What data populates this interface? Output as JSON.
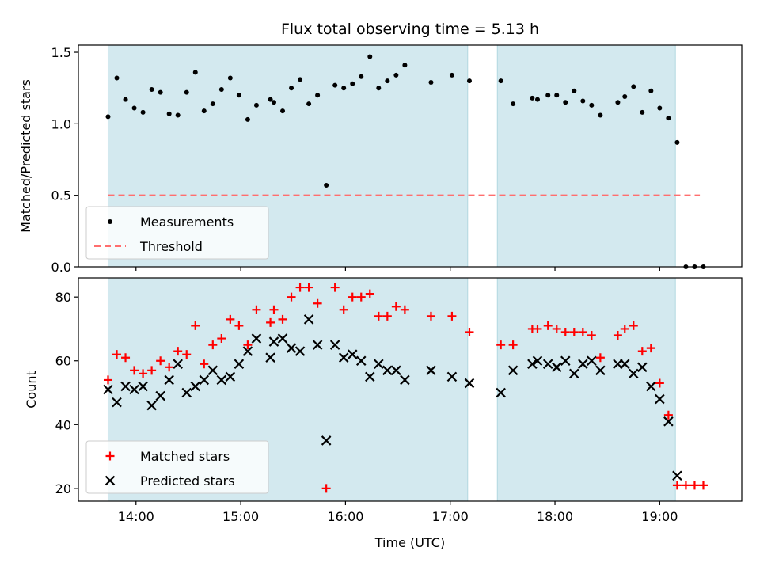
{
  "chart_data": [
    {
      "type": "scatter",
      "title": "Flux total observing time = 5.13 h",
      "xlabel": "",
      "ylabel": "Matched/Predicted stars",
      "xlim": [
        "13:27",
        "19:47"
      ],
      "ylim": [
        0,
        1.55
      ],
      "yticks": [
        0.0,
        0.5,
        1.0,
        1.5
      ],
      "ytick_labels": [
        "0.0",
        "0.5",
        "1.0",
        "1.5"
      ],
      "xticks": [
        "14:00",
        "15:00",
        "16:00",
        "17:00",
        "18:00",
        "19:00"
      ],
      "xtick_labels_shown": false,
      "shaded_intervals": [
        [
          "13:44",
          "17:10"
        ],
        [
          "17:27",
          "19:09"
        ]
      ],
      "shade_color": "#d3e9ef",
      "legend": {
        "placement": "lower-left",
        "entries": [
          "Measurements",
          "Threshold"
        ]
      },
      "series": [
        {
          "name": "Measurements",
          "marker": "dot",
          "color": "#000000",
          "points": [
            [
              "13:44",
              1.05
            ],
            [
              "13:49",
              1.32
            ],
            [
              "13:54",
              1.17
            ],
            [
              "13:59",
              1.11
            ],
            [
              "14:04",
              1.08
            ],
            [
              "14:09",
              1.24
            ],
            [
              "14:14",
              1.22
            ],
            [
              "14:19",
              1.07
            ],
            [
              "14:24",
              1.06
            ],
            [
              "14:29",
              1.22
            ],
            [
              "14:34",
              1.36
            ],
            [
              "14:39",
              1.09
            ],
            [
              "14:44",
              1.14
            ],
            [
              "14:49",
              1.24
            ],
            [
              "14:54",
              1.32
            ],
            [
              "14:59",
              1.2
            ],
            [
              "15:04",
              1.03
            ],
            [
              "15:09",
              1.13
            ],
            [
              "15:17",
              1.17
            ],
            [
              "15:19",
              1.15
            ],
            [
              "15:24",
              1.09
            ],
            [
              "15:29",
              1.25
            ],
            [
              "15:34",
              1.31
            ],
            [
              "15:39",
              1.14
            ],
            [
              "15:44",
              1.2
            ],
            [
              "15:49",
              0.57
            ],
            [
              "15:54",
              1.27
            ],
            [
              "15:59",
              1.25
            ],
            [
              "16:04",
              1.28
            ],
            [
              "16:09",
              1.33
            ],
            [
              "16:14",
              1.47
            ],
            [
              "16:19",
              1.25
            ],
            [
              "16:24",
              1.3
            ],
            [
              "16:29",
              1.34
            ],
            [
              "16:34",
              1.41
            ],
            [
              "16:49",
              1.29
            ],
            [
              "17:01",
              1.34
            ],
            [
              "17:11",
              1.3
            ],
            [
              "17:29",
              1.3
            ],
            [
              "17:36",
              1.14
            ],
            [
              "17:47",
              1.18
            ],
            [
              "17:50",
              1.17
            ],
            [
              "17:56",
              1.2
            ],
            [
              "18:01",
              1.2
            ],
            [
              "18:06",
              1.15
            ],
            [
              "18:11",
              1.23
            ],
            [
              "18:16",
              1.16
            ],
            [
              "18:21",
              1.13
            ],
            [
              "18:26",
              1.06
            ],
            [
              "18:36",
              1.15
            ],
            [
              "18:40",
              1.19
            ],
            [
              "18:45",
              1.26
            ],
            [
              "18:50",
              1.08
            ],
            [
              "18:55",
              1.23
            ],
            [
              "19:00",
              1.11
            ],
            [
              "19:05",
              1.04
            ],
            [
              "19:10",
              0.87
            ],
            [
              "19:15",
              0.0
            ],
            [
              "19:20",
              0.0
            ],
            [
              "19:25",
              0.0
            ]
          ]
        },
        {
          "name": "Threshold",
          "marker": "dashed-line",
          "color": "#ff6e6e",
          "points": [
            [
              "13:44",
              0.5
            ],
            [
              "19:23",
              0.5
            ]
          ]
        }
      ]
    },
    {
      "type": "scatter",
      "title": "",
      "xlabel": "Time (UTC)",
      "ylabel": "Count",
      "xlim": [
        "13:27",
        "19:47"
      ],
      "ylim": [
        16,
        86
      ],
      "yticks": [
        20,
        40,
        60,
        80
      ],
      "ytick_labels": [
        "20",
        "40",
        "60",
        "80"
      ],
      "xticks": [
        "14:00",
        "15:00",
        "16:00",
        "17:00",
        "18:00",
        "19:00"
      ],
      "xtick_labels": [
        "14:00",
        "15:00",
        "16:00",
        "17:00",
        "18:00",
        "19:00"
      ],
      "shaded_intervals": [
        [
          "13:44",
          "17:10"
        ],
        [
          "17:27",
          "19:09"
        ]
      ],
      "shade_color": "#d3e9ef",
      "legend": {
        "placement": "lower-left",
        "entries": [
          "Matched stars",
          "Predicted stars"
        ]
      },
      "series": [
        {
          "name": "Matched stars",
          "marker": "plus",
          "color": "#ff0000",
          "points": [
            [
              "13:44",
              54
            ],
            [
              "13:49",
              62
            ],
            [
              "13:54",
              61
            ],
            [
              "13:59",
              57
            ],
            [
              "14:04",
              56
            ],
            [
              "14:09",
              57
            ],
            [
              "14:14",
              60
            ],
            [
              "14:19",
              58
            ],
            [
              "14:24",
              63
            ],
            [
              "14:29",
              62
            ],
            [
              "14:34",
              71
            ],
            [
              "14:39",
              59
            ],
            [
              "14:44",
              65
            ],
            [
              "14:49",
              67
            ],
            [
              "14:54",
              73
            ],
            [
              "14:59",
              71
            ],
            [
              "15:04",
              65
            ],
            [
              "15:09",
              76
            ],
            [
              "15:17",
              72
            ],
            [
              "15:19",
              76
            ],
            [
              "15:24",
              73
            ],
            [
              "15:29",
              80
            ],
            [
              "15:34",
              83
            ],
            [
              "15:39",
              83
            ],
            [
              "15:44",
              78
            ],
            [
              "15:49",
              20
            ],
            [
              "15:54",
              83
            ],
            [
              "15:59",
              76
            ],
            [
              "16:04",
              80
            ],
            [
              "16:09",
              80
            ],
            [
              "16:14",
              81
            ],
            [
              "16:19",
              74
            ],
            [
              "16:24",
              74
            ],
            [
              "16:29",
              77
            ],
            [
              "16:34",
              76
            ],
            [
              "16:49",
              74
            ],
            [
              "17:01",
              74
            ],
            [
              "17:11",
              69
            ],
            [
              "17:29",
              65
            ],
            [
              "17:36",
              65
            ],
            [
              "17:47",
              70
            ],
            [
              "17:50",
              70
            ],
            [
              "17:56",
              71
            ],
            [
              "18:01",
              70
            ],
            [
              "18:06",
              69
            ],
            [
              "18:11",
              69
            ],
            [
              "18:16",
              69
            ],
            [
              "18:21",
              68
            ],
            [
              "18:26",
              61
            ],
            [
              "18:36",
              68
            ],
            [
              "18:40",
              70
            ],
            [
              "18:45",
              71
            ],
            [
              "18:50",
              63
            ],
            [
              "18:55",
              64
            ],
            [
              "19:00",
              53
            ],
            [
              "19:05",
              43
            ],
            [
              "19:10",
              21
            ],
            [
              "19:15",
              21
            ],
            [
              "19:20",
              21
            ],
            [
              "19:25",
              21
            ]
          ]
        },
        {
          "name": "Predicted stars",
          "marker": "x",
          "color": "#000000",
          "points": [
            [
              "13:44",
              51
            ],
            [
              "13:49",
              47
            ],
            [
              "13:54",
              52
            ],
            [
              "13:59",
              51
            ],
            [
              "14:04",
              52
            ],
            [
              "14:09",
              46
            ],
            [
              "14:14",
              49
            ],
            [
              "14:19",
              54
            ],
            [
              "14:24",
              59
            ],
            [
              "14:29",
              50
            ],
            [
              "14:34",
              52
            ],
            [
              "14:39",
              54
            ],
            [
              "14:44",
              57
            ],
            [
              "14:49",
              54
            ],
            [
              "14:54",
              55
            ],
            [
              "14:59",
              59
            ],
            [
              "15:04",
              63
            ],
            [
              "15:09",
              67
            ],
            [
              "15:17",
              61
            ],
            [
              "15:19",
              66
            ],
            [
              "15:24",
              67
            ],
            [
              "15:29",
              64
            ],
            [
              "15:34",
              63
            ],
            [
              "15:39",
              73
            ],
            [
              "15:44",
              65
            ],
            [
              "15:49",
              35
            ],
            [
              "15:54",
              65
            ],
            [
              "15:59",
              61
            ],
            [
              "16:04",
              62
            ],
            [
              "16:09",
              60
            ],
            [
              "16:14",
              55
            ],
            [
              "16:19",
              59
            ],
            [
              "16:24",
              57
            ],
            [
              "16:29",
              57
            ],
            [
              "16:34",
              54
            ],
            [
              "16:49",
              57
            ],
            [
              "17:01",
              55
            ],
            [
              "17:11",
              53
            ],
            [
              "17:29",
              50
            ],
            [
              "17:36",
              57
            ],
            [
              "17:47",
              59
            ],
            [
              "17:50",
              60
            ],
            [
              "17:56",
              59
            ],
            [
              "18:01",
              58
            ],
            [
              "18:06",
              60
            ],
            [
              "18:11",
              56
            ],
            [
              "18:16",
              59
            ],
            [
              "18:21",
              60
            ],
            [
              "18:26",
              57
            ],
            [
              "18:36",
              59
            ],
            [
              "18:40",
              59
            ],
            [
              "18:45",
              56
            ],
            [
              "18:50",
              58
            ],
            [
              "18:55",
              52
            ],
            [
              "19:00",
              48
            ],
            [
              "19:05",
              41
            ],
            [
              "19:10",
              24
            ]
          ]
        }
      ]
    }
  ]
}
